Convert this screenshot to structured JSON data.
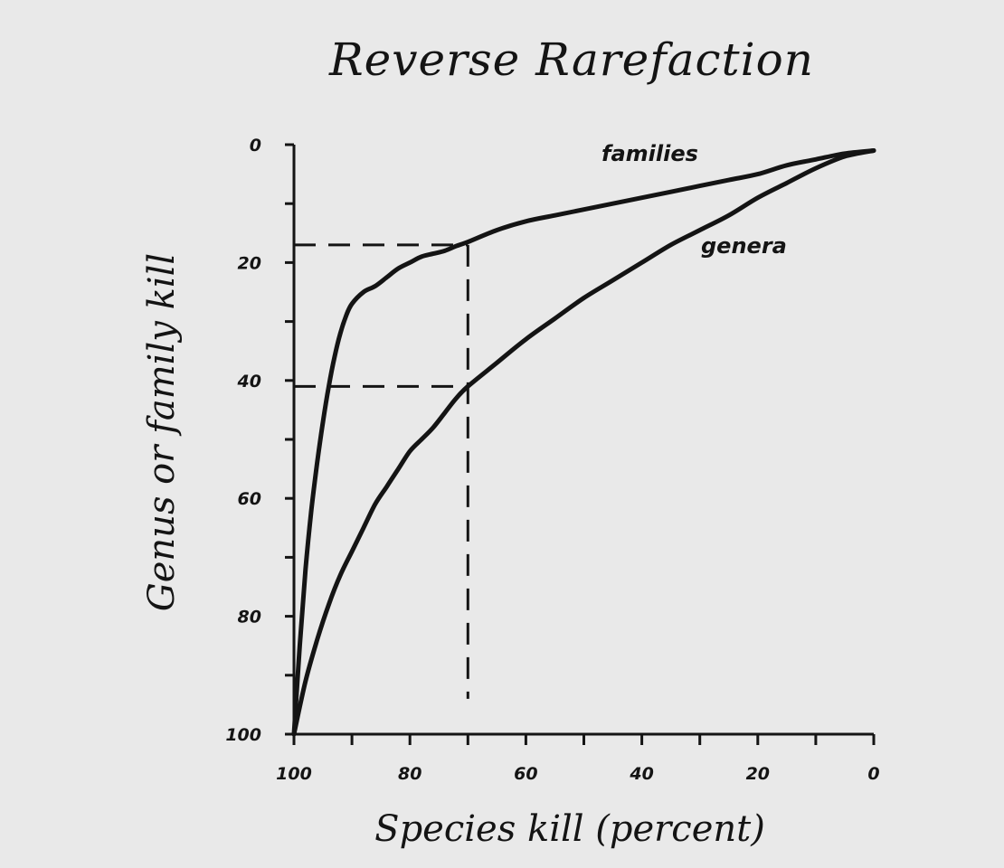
{
  "chart_data": {
    "type": "line",
    "title": "Reverse Rarefaction",
    "xlabel": "Species kill (percent)",
    "ylabel": "Genus or family kill",
    "xlim": [
      100,
      0
    ],
    "ylim": [
      0,
      100
    ],
    "x_reversed": true,
    "y_inverted": true,
    "x_ticks": [
      100,
      80,
      60,
      40,
      20,
      0
    ],
    "x_tick_labels": [
      "100",
      "80",
      "60",
      "40",
      "20",
      "0"
    ],
    "x_minor_ticks": [
      90,
      70,
      50,
      30,
      10
    ],
    "y_ticks": [
      0,
      20,
      40,
      60,
      80,
      100
    ],
    "y_tick_labels": [
      "0",
      "20",
      "40",
      "60",
      "80",
      "100"
    ],
    "y_minor_ticks": [
      10,
      30,
      50,
      70,
      90
    ],
    "grid": false,
    "legend": "inline labels",
    "series": [
      {
        "name": "families",
        "x": [
          100,
          99,
          98,
          97,
          96,
          95,
          94,
          93,
          92,
          91,
          90,
          88,
          86,
          84,
          82,
          80,
          78,
          76,
          74,
          72,
          70,
          65,
          60,
          55,
          50,
          45,
          40,
          35,
          30,
          25,
          20,
          15,
          10,
          5,
          0
        ],
        "y": [
          100,
          85,
          72,
          62,
          54,
          47,
          41,
          36,
          32,
          29,
          27,
          25,
          24,
          22.5,
          21,
          20,
          19,
          18.5,
          18,
          17.2,
          16.5,
          14.5,
          13,
          12,
          11,
          10,
          9,
          8,
          7,
          6,
          5,
          3.5,
          2.5,
          1.5,
          1
        ]
      },
      {
        "name": "genera",
        "x": [
          100,
          98,
          96,
          94,
          92,
          90,
          88,
          86,
          84,
          82,
          80,
          78,
          76,
          74,
          72,
          70,
          65,
          60,
          55,
          50,
          45,
          40,
          35,
          30,
          25,
          20,
          15,
          10,
          5,
          0
        ],
        "y": [
          100,
          91,
          84,
          78,
          73,
          69,
          65,
          61,
          58,
          55,
          52,
          50,
          48,
          45.5,
          43,
          41,
          37,
          33,
          29.5,
          26,
          23,
          20,
          17,
          14.5,
          12,
          9,
          6.5,
          4,
          2,
          1
        ]
      }
    ],
    "reference_lines": [
      {
        "x": [
          100,
          70
        ],
        "y": [
          17,
          17
        ],
        "style": "dashed"
      },
      {
        "x": [
          100,
          70
        ],
        "y": [
          41,
          41
        ],
        "style": "dashed"
      },
      {
        "x": [
          70,
          70
        ],
        "y": [
          17,
          94
        ],
        "style": "dashed"
      }
    ]
  }
}
